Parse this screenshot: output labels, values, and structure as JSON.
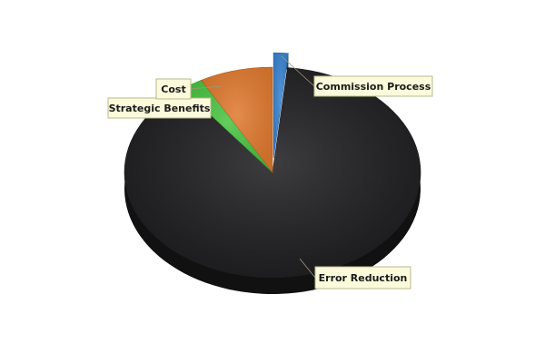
{
  "chart_data": {
    "type": "pie",
    "style": "3d",
    "slices": [
      {
        "label": "Commission Process",
        "value": 1.6,
        "color": "#3a84d1",
        "exploded": true
      },
      {
        "label": "Error Reduction",
        "value": 88.0,
        "color": "#1e1e21",
        "exploded": false
      },
      {
        "label": "Strategic Benefits",
        "value": 2.4,
        "color": "#49c442",
        "exploded": false
      },
      {
        "label": "Cost",
        "value": 8.0,
        "color": "#e07a30",
        "exploded": false
      }
    ],
    "label_background": "#fbfbdb",
    "label_border": "#b9b98c"
  }
}
